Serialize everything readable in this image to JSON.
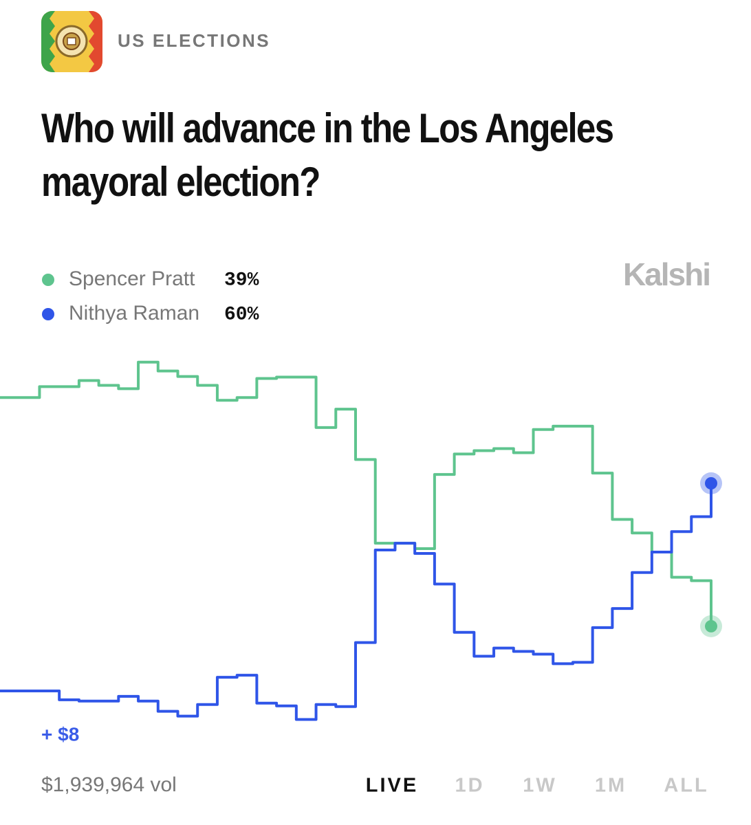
{
  "header": {
    "category": "US ELECTIONS",
    "title": "Who will advance in the Los Angeles mayoral election?",
    "brand": "Kalshi"
  },
  "chart_data": {
    "type": "line",
    "ylim": [
      20,
      80
    ],
    "series": [
      {
        "name": "Spencer Pratt",
        "color": "#5ec48e",
        "last_label": "39%",
        "values": [
          72.6,
          72.6,
          74.2,
          74.2,
          75.1,
          74.4,
          73.9,
          77.8,
          76.5,
          75.7,
          74.4,
          72.2,
          72.6,
          75.4,
          75.6,
          75.6,
          68.2,
          70.9,
          63.5,
          51.2,
          51.2,
          50.4,
          61.3,
          64.3,
          64.8,
          65.1,
          64.5,
          67.9,
          68.4,
          68.4,
          61.5,
          54.7,
          52.7,
          49.9,
          46.2,
          45.7,
          39
        ]
      },
      {
        "name": "Nithya Raman",
        "color": "#2f55e8",
        "last_label": "60%",
        "values": [
          29.5,
          29.5,
          29.5,
          28.2,
          28.0,
          28.0,
          28.7,
          28.0,
          26.5,
          25.8,
          27.5,
          31.5,
          31.8,
          27.7,
          27.3,
          25.3,
          27.5,
          27.2,
          36.6,
          50.2,
          51.2,
          49.7,
          45.2,
          38.1,
          34.6,
          35.8,
          35.3,
          34.9,
          33.5,
          33.7,
          38.8,
          41.6,
          46.9,
          49.9,
          52.9,
          55.1,
          60
        ]
      }
    ]
  },
  "footer": {
    "change": "+ $8",
    "volume": "$1,939,964 vol",
    "tabs": [
      "LIVE",
      "1D",
      "1W",
      "1M",
      "ALL"
    ],
    "active_tab": 0
  }
}
